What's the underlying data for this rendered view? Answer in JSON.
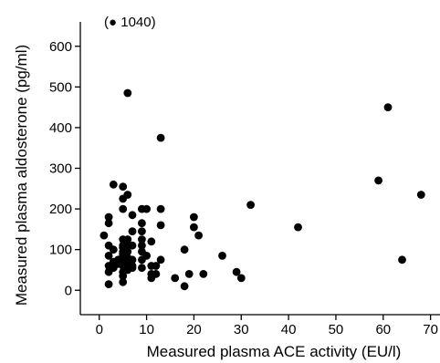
{
  "chart_data": {
    "type": "scatter",
    "title": "",
    "xlabel": "Measured plasma ACE activity (EU/l)",
    "ylabel": "Measured plasma aldosterone (pg/ml)",
    "xlim": [
      -4,
      72
    ],
    "ylim": [
      -60,
      660
    ],
    "x_ticks": [
      "0",
      "10",
      "20",
      "30",
      "40",
      "50",
      "60",
      "70"
    ],
    "y_ticks": [
      "0",
      "100",
      "200",
      "300",
      "400",
      "500",
      "600"
    ],
    "grid": false,
    "legend": "none",
    "annotation": {
      "label": "1040",
      "text": "(● 1040)",
      "x": 4,
      "y": 1040
    },
    "series": [
      {
        "points": [
          [
            1,
            135
          ],
          [
            2,
            180
          ],
          [
            2,
            165
          ],
          [
            2,
            110
          ],
          [
            2,
            85
          ],
          [
            2,
            60
          ],
          [
            2,
            45
          ],
          [
            2,
            15
          ],
          [
            3,
            260
          ],
          [
            3,
            100
          ],
          [
            3,
            70
          ],
          [
            3,
            55
          ],
          [
            4,
            75
          ],
          [
            4,
            65
          ],
          [
            5,
            255
          ],
          [
            5,
            225
          ],
          [
            5,
            200
          ],
          [
            5,
            125
          ],
          [
            5,
            110
          ],
          [
            5,
            105
          ],
          [
            5,
            95
          ],
          [
            5,
            90
          ],
          [
            5,
            85
          ],
          [
            5,
            75
          ],
          [
            5,
            60
          ],
          [
            5,
            45
          ],
          [
            5,
            35
          ],
          [
            5,
            20
          ],
          [
            6,
            485
          ],
          [
            6,
            235
          ],
          [
            6,
            125
          ],
          [
            6,
            110
          ],
          [
            6,
            95
          ],
          [
            6,
            80
          ],
          [
            6,
            65
          ],
          [
            6,
            50
          ],
          [
            7,
            185
          ],
          [
            7,
            145
          ],
          [
            7,
            110
          ],
          [
            7,
            75
          ],
          [
            7,
            60
          ],
          [
            7,
            55
          ],
          [
            9,
            200
          ],
          [
            9,
            165
          ],
          [
            9,
            145
          ],
          [
            9,
            125
          ],
          [
            9,
            110
          ],
          [
            9,
            95
          ],
          [
            9,
            75
          ],
          [
            9,
            55
          ],
          [
            10,
            200
          ],
          [
            10,
            85
          ],
          [
            11,
            120
          ],
          [
            11,
            60
          ],
          [
            11,
            40
          ],
          [
            11,
            30
          ],
          [
            12,
            60
          ],
          [
            12,
            40
          ],
          [
            13,
            375
          ],
          [
            13,
            200
          ],
          [
            13,
            160
          ],
          [
            13,
            75
          ],
          [
            16,
            30
          ],
          [
            18,
            10
          ],
          [
            18,
            100
          ],
          [
            19,
            40
          ],
          [
            20,
            180
          ],
          [
            20,
            155
          ],
          [
            21,
            135
          ],
          [
            22,
            40
          ],
          [
            26,
            85
          ],
          [
            29,
            45
          ],
          [
            30,
            30
          ],
          [
            32,
            210
          ],
          [
            42,
            155
          ],
          [
            59,
            270
          ],
          [
            61,
            450
          ],
          [
            64,
            75
          ],
          [
            68,
            235
          ]
        ]
      }
    ]
  }
}
